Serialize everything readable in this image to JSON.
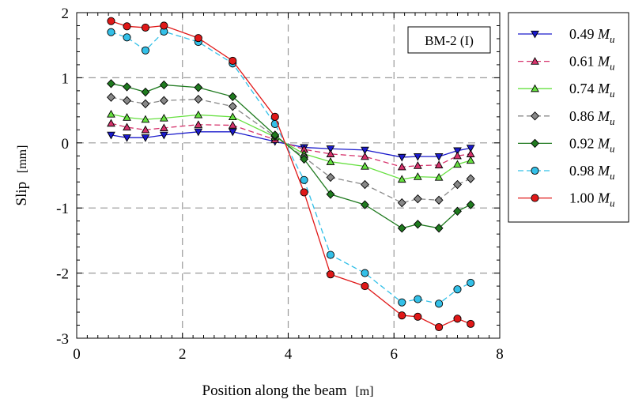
{
  "chart_data": {
    "type": "line",
    "title": "",
    "xlabel": "Position along the beam",
    "xlabel_unit": "[m]",
    "ylabel": "Slip",
    "ylabel_unit": "[mm]",
    "xlim": [
      0,
      8
    ],
    "ylim": [
      -3,
      2
    ],
    "xticks": [
      0,
      2,
      4,
      6,
      8
    ],
    "yticks": [
      -3,
      -2,
      -1,
      0,
      1,
      2
    ],
    "grid": true,
    "legend_position": "right-outside",
    "annotation": "BM-2 (I)",
    "x": [
      0.65,
      0.95,
      1.3,
      1.65,
      2.3,
      2.95,
      3.75,
      4.3,
      4.8,
      5.45,
      6.15,
      6.45,
      6.85,
      7.2,
      7.45
    ],
    "series": [
      {
        "name": "0.49",
        "name_sub": "M",
        "name_subscript": "u",
        "color": "#1a1acc",
        "marker": "triangle-down",
        "dash": "solid",
        "values": [
          0.12,
          0.08,
          0.08,
          0.12,
          0.17,
          0.17,
          0.02,
          -0.07,
          -0.09,
          -0.11,
          -0.22,
          -0.21,
          -0.21,
          -0.12,
          -0.08
        ]
      },
      {
        "name": "0.61",
        "name_sub": "M",
        "name_subscript": "u",
        "color": "#d6336c",
        "marker": "triangle-up",
        "dash": "dashed",
        "values": [
          0.3,
          0.24,
          0.2,
          0.23,
          0.28,
          0.27,
          0.05,
          -0.1,
          -0.17,
          -0.21,
          -0.37,
          -0.35,
          -0.34,
          -0.2,
          -0.17
        ]
      },
      {
        "name": "0.74",
        "name_sub": "M",
        "name_subscript": "u",
        "color": "#66e040",
        "marker": "triangle-up",
        "dash": "solid",
        "values": [
          0.44,
          0.39,
          0.36,
          0.38,
          0.43,
          0.4,
          0.09,
          -0.17,
          -0.29,
          -0.36,
          -0.56,
          -0.52,
          -0.53,
          -0.33,
          -0.27
        ]
      },
      {
        "name": "0.86",
        "name_sub": "M",
        "name_subscript": "u",
        "color": "#888888",
        "marker": "diamond",
        "dash": "dashed",
        "values": [
          0.7,
          0.65,
          0.6,
          0.65,
          0.67,
          0.56,
          0.1,
          -0.22,
          -0.53,
          -0.64,
          -0.92,
          -0.86,
          -0.88,
          -0.64,
          -0.55
        ]
      },
      {
        "name": "0.92",
        "name_sub": "M",
        "name_subscript": "u",
        "color": "#1f7a1f",
        "marker": "diamond",
        "dash": "solid",
        "values": [
          0.91,
          0.86,
          0.78,
          0.89,
          0.85,
          0.71,
          0.12,
          -0.25,
          -0.79,
          -0.95,
          -1.31,
          -1.25,
          -1.31,
          -1.05,
          -0.95
        ]
      },
      {
        "name": "0.98",
        "name_sub": "M",
        "name_subscript": "u",
        "color": "#33c0e8",
        "marker": "circle",
        "dash": "dashed",
        "values": [
          1.7,
          1.62,
          1.42,
          1.71,
          1.55,
          1.22,
          0.29,
          -0.57,
          -1.72,
          -2.0,
          -2.45,
          -2.4,
          -2.47,
          -2.25,
          -2.15
        ]
      },
      {
        "name": "1.00",
        "name_sub": "M",
        "name_subscript": "u",
        "color": "#e01818",
        "marker": "circle",
        "dash": "solid",
        "values": [
          1.87,
          1.79,
          1.77,
          1.8,
          1.61,
          1.26,
          0.4,
          -0.76,
          -2.02,
          -2.2,
          -2.65,
          -2.67,
          -2.83,
          -2.7,
          -2.78
        ]
      }
    ]
  }
}
